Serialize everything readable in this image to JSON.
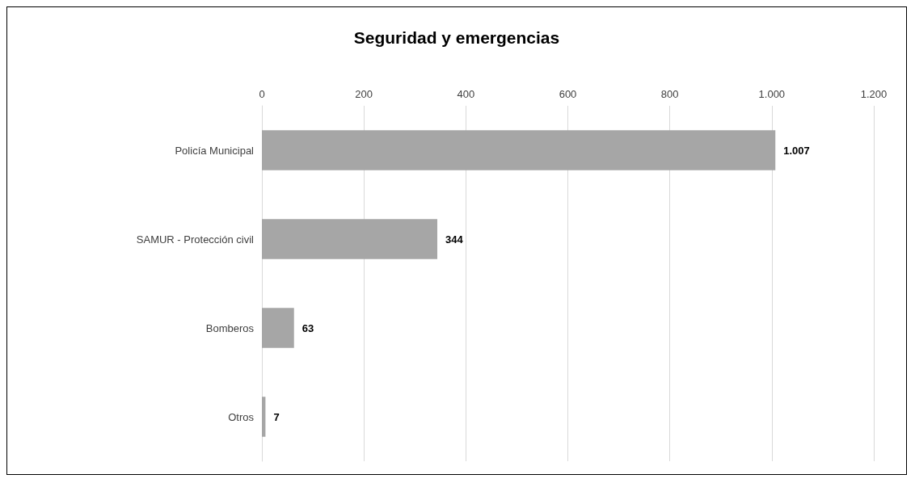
{
  "chart_data": {
    "type": "bar",
    "orientation": "horizontal",
    "title": "Seguridad y emergencias",
    "categories": [
      "Policía Municipal",
      "SAMUR - Protección civil",
      "Bomberos",
      "Otros"
    ],
    "values": [
      1007,
      344,
      63,
      7
    ],
    "value_labels": [
      "1.007",
      "344",
      "63",
      "7"
    ],
    "color": "#a6a6a6",
    "xlim": [
      0,
      1200
    ],
    "xticks": [
      0,
      200,
      400,
      600,
      800,
      {
        "value": 1000,
        "label": "1.000"
      },
      {
        "value": 1200,
        "label": "1.200"
      }
    ],
    "grid": "x"
  }
}
